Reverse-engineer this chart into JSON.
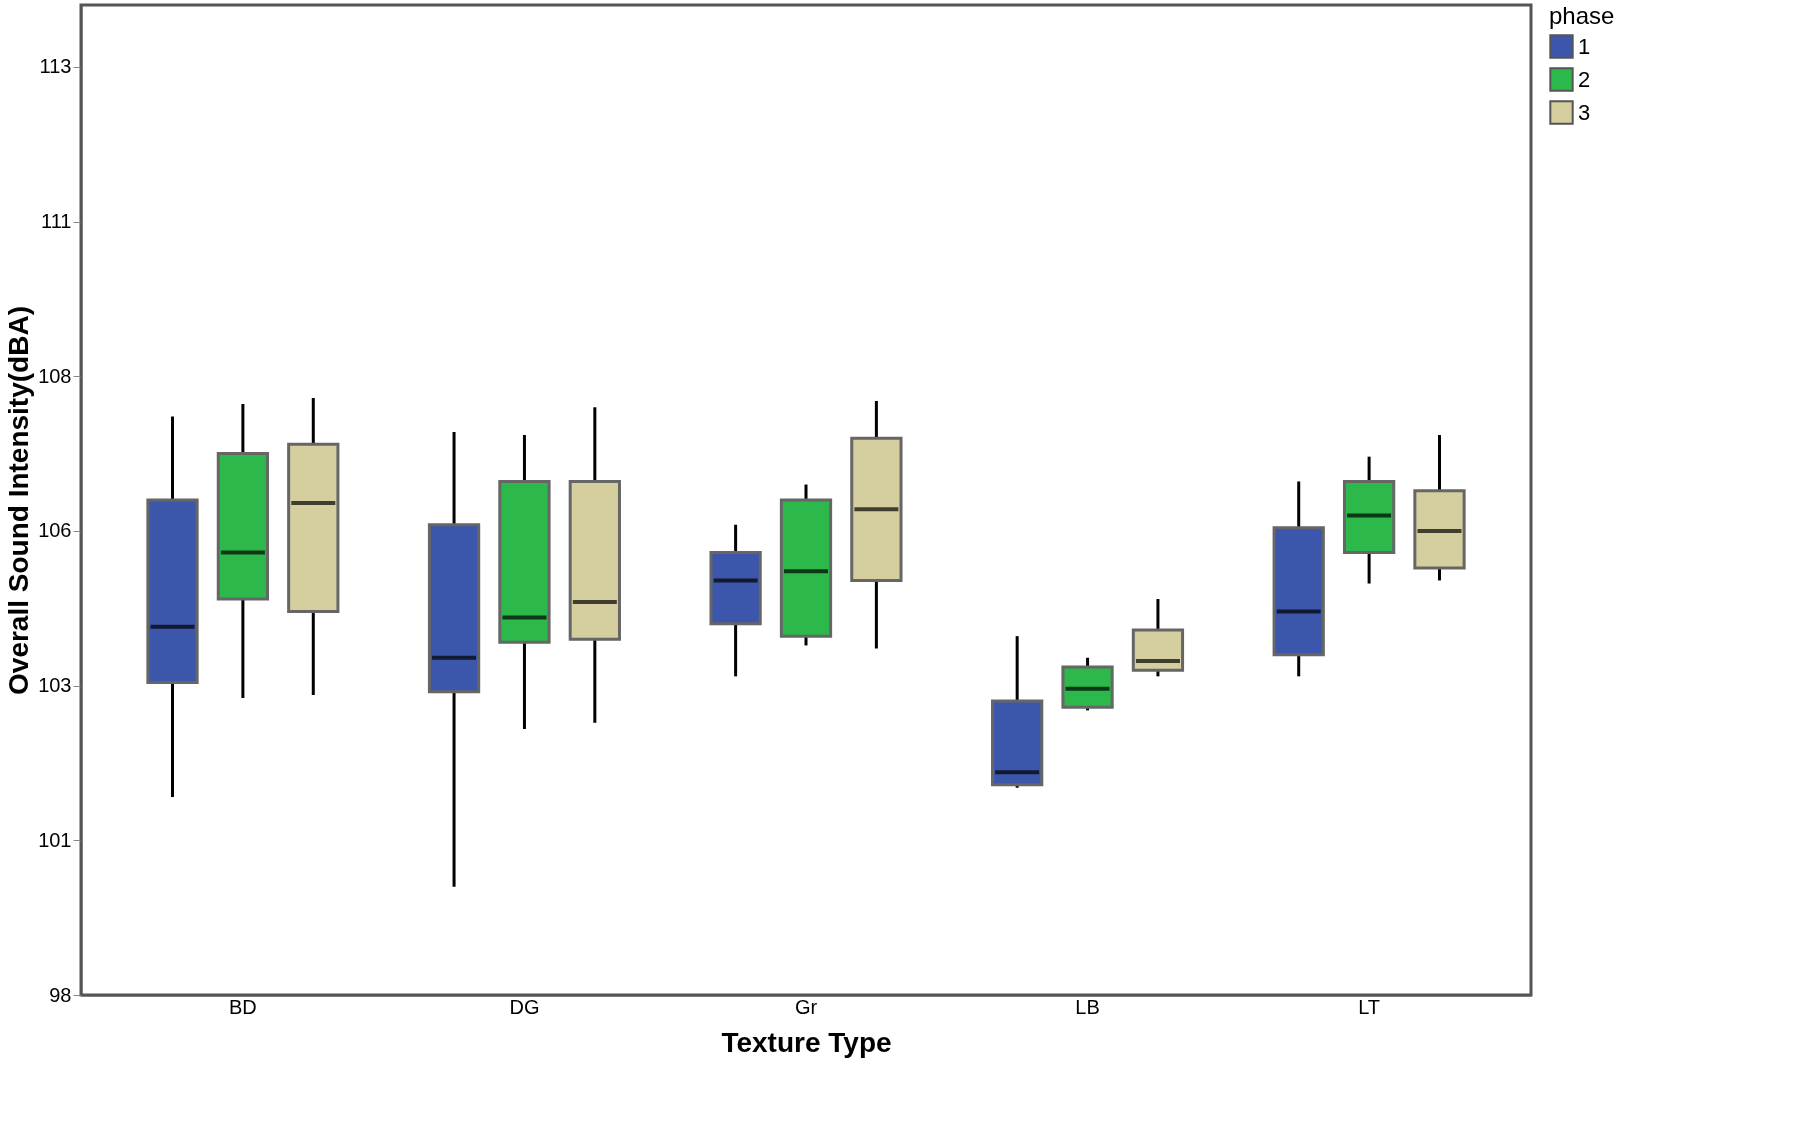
{
  "chart_data": {
    "type": "box",
    "xlabel": "Texture Type",
    "ylabel": "Overall Sound Intensity(dBA)",
    "legend_title": "phase",
    "legend": "top right",
    "grid": false,
    "categories": [
      "BD",
      "DG",
      "Gr",
      "LB",
      "LT"
    ],
    "ylim": [
      98,
      114
    ],
    "yticks": [
      98,
      {
        "value": 100.5,
        "label": "101"
      },
      103,
      {
        "value": 105.5,
        "label": "106"
      },
      108,
      {
        "value": 110.5,
        "label": "111"
      },
      113
    ],
    "series": [
      {
        "name": "1",
        "color": "#3c56ab",
        "boxes": [
          {
            "low": 101.2,
            "q1": 103.05,
            "median": 103.95,
            "q3": 106.0,
            "high": 107.35
          },
          {
            "low": 99.75,
            "q1": 102.9,
            "median": 103.45,
            "q3": 105.6,
            "high": 107.1
          },
          {
            "low": 103.15,
            "q1": 104.0,
            "median": 104.7,
            "q3": 105.15,
            "high": 105.6
          },
          {
            "low": 101.35,
            "q1": 101.4,
            "median": 101.6,
            "q3": 102.75,
            "high": 103.8
          },
          {
            "low": 103.15,
            "q1": 103.5,
            "median": 104.2,
            "q3": 105.55,
            "high": 106.3
          }
        ]
      },
      {
        "name": "2",
        "color": "#2db84b",
        "boxes": [
          {
            "low": 102.8,
            "q1": 104.4,
            "median": 105.15,
            "q3": 106.75,
            "high": 107.55
          },
          {
            "low": 102.3,
            "q1": 103.7,
            "median": 104.1,
            "q3": 106.3,
            "high": 107.05
          },
          {
            "low": 103.65,
            "q1": 103.8,
            "median": 104.85,
            "q3": 106.0,
            "high": 106.25
          },
          {
            "low": 102.6,
            "q1": 102.65,
            "median": 102.95,
            "q3": 103.3,
            "high": 103.45
          },
          {
            "low": 104.65,
            "q1": 105.15,
            "median": 105.75,
            "q3": 106.3,
            "high": 106.7
          }
        ]
      },
      {
        "name": "3",
        "color": "#d5cf9f",
        "boxes": [
          {
            "low": 102.85,
            "q1": 104.2,
            "median": 105.95,
            "q3": 106.9,
            "high": 107.65
          },
          {
            "low": 102.4,
            "q1": 103.75,
            "median": 104.35,
            "q3": 106.3,
            "high": 107.5
          },
          {
            "low": 103.6,
            "q1": 104.7,
            "median": 105.85,
            "q3": 107.0,
            "high": 107.6
          },
          {
            "low": 103.15,
            "q1": 103.25,
            "median": 103.4,
            "q3": 103.9,
            "high": 104.4
          },
          {
            "low": 104.7,
            "q1": 104.9,
            "median": 105.5,
            "q3": 106.15,
            "high": 107.05
          }
        ]
      }
    ]
  }
}
